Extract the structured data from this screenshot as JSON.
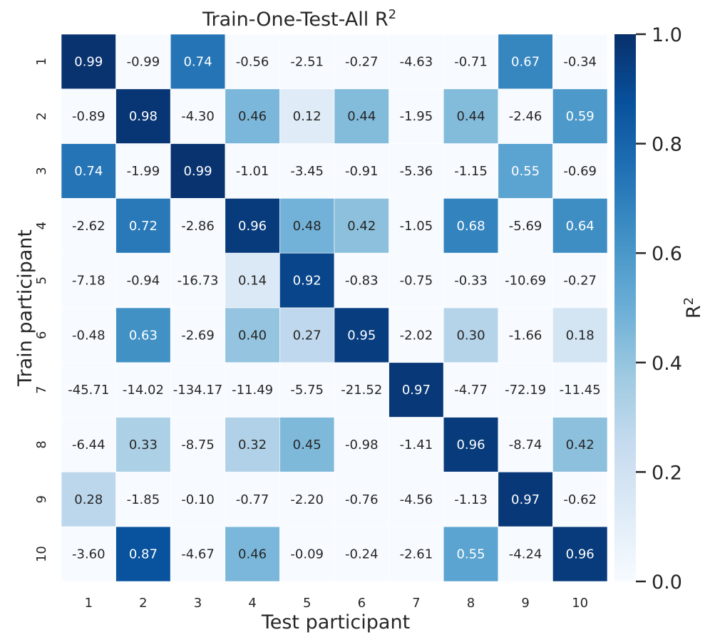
{
  "chart_data": {
    "type": "heatmap",
    "title": "Train-One-Test-All R",
    "title_superscript": "2",
    "xlabel": "Test participant",
    "ylabel": "Train participant",
    "colorbar_label": "R",
    "colorbar_label_superscript": "2",
    "colormap": "Blues",
    "vmin": 0.0,
    "vmax": 1.0,
    "colorbar_ticks": [
      "0.0",
      "0.2",
      "0.4",
      "0.6",
      "0.8",
      "1.0"
    ],
    "x_categories": [
      "1",
      "2",
      "3",
      "4",
      "5",
      "6",
      "7",
      "8",
      "9",
      "10"
    ],
    "y_categories": [
      "1",
      "2",
      "3",
      "4",
      "5",
      "6",
      "7",
      "8",
      "9",
      "10"
    ],
    "values": [
      [
        0.99,
        -0.99,
        0.74,
        -0.56,
        -2.51,
        -0.27,
        -4.63,
        -0.71,
        0.67,
        -0.34
      ],
      [
        -0.89,
        0.98,
        -4.3,
        0.46,
        0.12,
        0.44,
        -1.95,
        0.44,
        -2.46,
        0.59
      ],
      [
        0.74,
        -1.99,
        0.99,
        -1.01,
        -3.45,
        -0.91,
        -5.36,
        -1.15,
        0.55,
        -0.69
      ],
      [
        -2.62,
        0.72,
        -2.86,
        0.96,
        0.48,
        0.42,
        -1.05,
        0.68,
        -5.69,
        0.64
      ],
      [
        -7.18,
        -0.94,
        -16.73,
        0.14,
        0.92,
        -0.83,
        -0.75,
        -0.33,
        -10.69,
        -0.27
      ],
      [
        -0.48,
        0.63,
        -2.69,
        0.4,
        0.27,
        0.95,
        -2.02,
        0.3,
        -1.66,
        0.18
      ],
      [
        -45.71,
        -14.02,
        -134.17,
        -11.49,
        -5.75,
        -21.52,
        0.97,
        -4.77,
        -72.19,
        -11.45
      ],
      [
        -6.44,
        0.33,
        -8.75,
        0.32,
        0.45,
        -0.98,
        -1.41,
        0.96,
        -8.74,
        0.42
      ],
      [
        0.28,
        -1.85,
        -0.1,
        -0.77,
        -2.2,
        -0.76,
        -4.56,
        -1.13,
        0.97,
        -0.62
      ],
      [
        -3.6,
        0.87,
        -4.67,
        0.46,
        -0.09,
        -0.24,
        -2.61,
        0.55,
        -4.24,
        0.96
      ]
    ],
    "value_format": "2 decimals",
    "grid": false
  }
}
